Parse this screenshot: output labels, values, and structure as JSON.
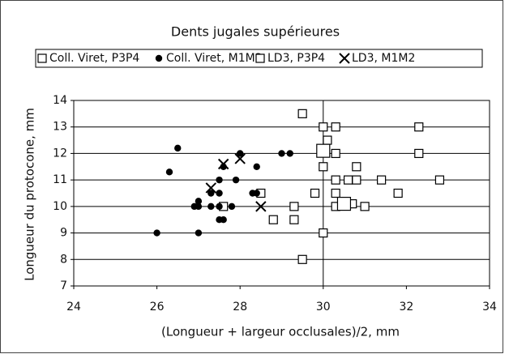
{
  "chart_data": {
    "type": "scatter",
    "title": "Dents jugales supérieures",
    "x_label": "(Longueur + largeur occlusales)/2, mm",
    "y_label": "Longueur du protocone, mm",
    "xlim": [
      24,
      34
    ],
    "xticks": [
      24,
      26,
      28,
      30,
      32,
      34
    ],
    "ylim": [
      7,
      14
    ],
    "yticks": [
      7,
      8,
      9,
      10,
      11,
      12,
      13,
      14
    ],
    "grid": true,
    "vertical_line": 30,
    "legend": "top",
    "series": [
      {
        "name": "Coll. Viret, P3P4",
        "marker": "square",
        "color": "#000000",
        "x": [
          29.5,
          30,
          30.3,
          32.3,
          30.3,
          32.3,
          30,
          30.8,
          30.3,
          30.6,
          30.8,
          31.4,
          32.8,
          29.8,
          30.3,
          31.8,
          28.5,
          29.3,
          30.3,
          30.7,
          31,
          28.8,
          29.3,
          30,
          29.5,
          27.6,
          30.1
        ],
        "values": [
          13.5,
          13,
          13,
          13,
          12,
          12,
          11.5,
          11.5,
          11,
          11,
          11,
          11,
          11,
          10.5,
          10.5,
          10.5,
          10.5,
          10,
          10,
          10.1,
          10,
          9.5,
          9.5,
          9,
          8,
          10,
          12.5
        ]
      },
      {
        "name": "Coll. Viret, M1M2",
        "marker": "circle",
        "color": "#000000",
        "x": [
          26,
          26.3,
          26.5,
          26.9,
          27,
          27,
          27,
          27.3,
          27.3,
          27.5,
          27.5,
          27.5,
          27.5,
          27.6,
          27.6,
          27.9,
          27.8,
          28,
          28.3,
          28.4,
          28.4,
          29,
          29.2
        ],
        "values": [
          9,
          11.3,
          12.2,
          10,
          10,
          10.2,
          9,
          10,
          10.5,
          11,
          10.5,
          10,
          9.5,
          9.5,
          11.5,
          11,
          10,
          12,
          10.5,
          10.5,
          11.5,
          12,
          12
        ]
      },
      {
        "name": "LD3, P3P4",
        "marker": "bigsquare",
        "color": "#000000",
        "x": [
          30,
          30.5
        ],
        "values": [
          12.1,
          10.1
        ]
      },
      {
        "name": "LD3, M1M2",
        "marker": "cross",
        "color": "#000000",
        "x": [
          27.3,
          27.6,
          28,
          28.5
        ],
        "values": [
          10.7,
          11.6,
          11.8,
          10
        ]
      }
    ]
  }
}
